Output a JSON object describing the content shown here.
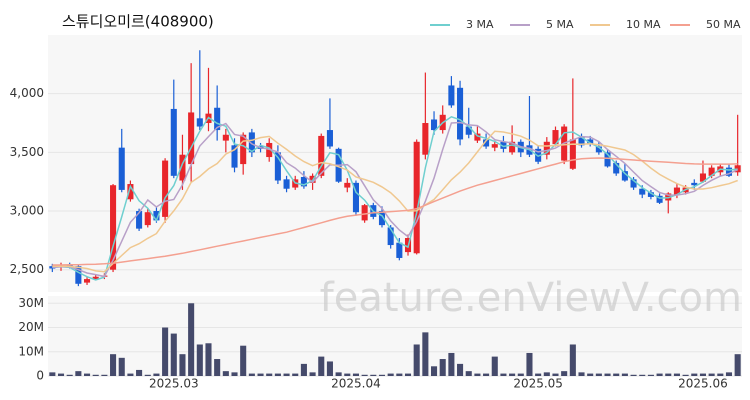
{
  "chart_data": [
    {
      "type": "candlestick",
      "title": "스튜디오미르(408900)",
      "annotation": "feature.enViewV.com",
      "up_color": "#e8262b",
      "down_color": "#1a5fd6",
      "open": [
        2530,
        2520,
        2540,
        2530,
        2390,
        2420,
        2440,
        2500,
        3540,
        3100,
        3000,
        2880,
        3000,
        2950,
        3870,
        3260,
        3400,
        3790,
        3750,
        3880,
        3600,
        3560,
        3400,
        3670,
        3550,
        3460,
        3500,
        3270,
        3200,
        3290,
        3240,
        3300,
        3690,
        3530,
        3200,
        3240,
        2920,
        3050,
        3000,
        2860,
        2730,
        2650,
        2640,
        3480,
        3780,
        3690,
        4070,
        4050,
        3720,
        3600,
        3610,
        3540,
        3590,
        3500,
        3590,
        3560,
        3530,
        3480,
        3570,
        3430,
        3360,
        3630,
        3610,
        3550,
        3500,
        3410,
        3340,
        3270,
        3190,
        3160,
        3130,
        3090,
        3140,
        3160,
        3240,
        3250,
        3300,
        3330,
        3370,
        3330
      ],
      "high": [
        2550,
        2560,
        2560,
        2540,
        2440,
        2460,
        2470,
        3230,
        3700,
        3260,
        3020,
        3020,
        3030,
        3450,
        4120,
        3650,
        4260,
        4370,
        4220,
        4070,
        3700,
        3620,
        3670,
        3700,
        3580,
        3620,
        3560,
        3300,
        3300,
        3340,
        3320,
        3660,
        3960,
        3540,
        3280,
        3260,
        3060,
        3070,
        3040,
        2880,
        2770,
        2800,
        3610,
        4180,
        3850,
        3900,
        4150,
        4110,
        3880,
        3720,
        3660,
        3600,
        3640,
        3730,
        3610,
        3980,
        3560,
        3630,
        3720,
        3740,
        4130,
        3660,
        3640,
        3590,
        3520,
        3430,
        3400,
        3290,
        3220,
        3180,
        3150,
        3160,
        3230,
        3220,
        3270,
        3430,
        3390,
        3400,
        3400,
        3820
      ],
      "low": [
        2480,
        2490,
        2510,
        2360,
        2370,
        2410,
        2420,
        2480,
        3160,
        3080,
        2830,
        2860,
        2900,
        2900,
        3280,
        3180,
        3250,
        3690,
        3680,
        3600,
        3500,
        3330,
        3310,
        3460,
        3500,
        3420,
        3230,
        3160,
        3180,
        3190,
        3180,
        3280,
        3530,
        3240,
        3160,
        2960,
        2900,
        2930,
        2860,
        2680,
        2580,
        2620,
        2630,
        3440,
        3650,
        3660,
        3880,
        3560,
        3620,
        3580,
        3530,
        3510,
        3500,
        3480,
        3460,
        3460,
        3400,
        3440,
        3550,
        3400,
        3350,
        3540,
        3550,
        3480,
        3370,
        3300,
        3250,
        3180,
        3110,
        3100,
        3060,
        2980,
        3110,
        3140,
        3180,
        3240,
        3280,
        3300,
        3290,
        3300
      ],
      "close": [
        2510,
        2530,
        2520,
        2380,
        2420,
        2440,
        2450,
        3220,
        3180,
        3230,
        2850,
        2990,
        2920,
        3430,
        3300,
        3480,
        3840,
        3720,
        3830,
        3690,
        3650,
        3370,
        3650,
        3500,
        3530,
        3580,
        3260,
        3190,
        3270,
        3210,
        3300,
        3640,
        3550,
        3250,
        3240,
        2990,
        3050,
        2950,
        2880,
        2710,
        2600,
        2770,
        3590,
        3750,
        3690,
        3820,
        3900,
        3610,
        3650,
        3660,
        3550,
        3570,
        3530,
        3590,
        3500,
        3480,
        3420,
        3590,
        3690,
        3720,
        3610,
        3560,
        3570,
        3500,
        3380,
        3320,
        3260,
        3200,
        3140,
        3120,
        3070,
        3150,
        3200,
        3200,
        3220,
        3320,
        3370,
        3380,
        3300,
        3390
      ],
      "series": [
        {
          "name": "3 MA",
          "color": "#6fcfcf",
          "values": [
            2520,
            2525,
            2520,
            2477,
            2440,
            2413,
            2437,
            2703,
            2950,
            3210,
            3087,
            3023,
            2920,
            3113,
            3217,
            3403,
            3540,
            3680,
            3797,
            3747,
            3723,
            3570,
            3557,
            3507,
            3560,
            3537,
            3457,
            3343,
            3240,
            3223,
            3260,
            3383,
            3497,
            3480,
            3347,
            3160,
            3093,
            2997,
            2960,
            2847,
            2730,
            2693,
            2987,
            3370,
            3677,
            3753,
            3803,
            3777,
            3720,
            3640,
            3620,
            3593,
            3550,
            3563,
            3540,
            3523,
            3467,
            3497,
            3567,
            3667,
            3673,
            3630,
            3580,
            3543,
            3483,
            3400,
            3320,
            3260,
            3200,
            3153,
            3110,
            3113,
            3140,
            3183,
            3207,
            3247,
            3303,
            3357,
            3350,
            3357
          ]
        },
        {
          "name": "5 MA",
          "color": "#b8a0c8",
          "values": [
            2520,
            2525,
            2525,
            2500,
            2472,
            2458,
            2442,
            2582,
            2742,
            2904,
            2986,
            3094,
            3034,
            3084,
            3098,
            3224,
            3394,
            3554,
            3634,
            3712,
            3746,
            3652,
            3638,
            3572,
            3540,
            3526,
            3504,
            3412,
            3366,
            3302,
            3246,
            3322,
            3394,
            3390,
            3396,
            3334,
            3216,
            3096,
            3022,
            2916,
            2838,
            2782,
            2910,
            3084,
            3280,
            3524,
            3750,
            3754,
            3734,
            3728,
            3674,
            3608,
            3592,
            3580,
            3548,
            3534,
            3504,
            3516,
            3536,
            3580,
            3606,
            3634,
            3630,
            3592,
            3524,
            3466,
            3406,
            3332,
            3260,
            3208,
            3158,
            3136,
            3136,
            3148,
            3168,
            3218,
            3262,
            3298,
            3318,
            3352
          ]
        },
        {
          "name": "10 MA",
          "color": "#f0c890",
          "values": [
            2530,
            2530,
            2528,
            2520,
            2510,
            2490,
            2483,
            2553,
            2621,
            2688,
            2722,
            2768,
            2808,
            2913,
            3001,
            3105,
            3244,
            3294,
            3359,
            3405,
            3485,
            3523,
            3596,
            3603,
            3626,
            3636,
            3578,
            3525,
            3469,
            3421,
            3386,
            3413,
            3403,
            3378,
            3349,
            3290,
            3269,
            3245,
            3206,
            3156,
            3086,
            2999,
            3003,
            3053,
            3098,
            3181,
            3266,
            3332,
            3409,
            3504,
            3599,
            3679,
            3673,
            3657,
            3638,
            3604,
            3556,
            3554,
            3558,
            3564,
            3570,
            3569,
            3573,
            3564,
            3552,
            3536,
            3520,
            3481,
            3426,
            3366,
            3312,
            3271,
            3234,
            3204,
            3188,
            3188,
            3199,
            3217,
            3233,
            3260
          ]
        },
        {
          "name": "50 MA",
          "color": "#f4a090",
          "values": [
            2540,
            2540,
            2542,
            2543,
            2545,
            2547,
            2550,
            2555,
            2565,
            2575,
            2585,
            2595,
            2605,
            2615,
            2628,
            2640,
            2655,
            2670,
            2685,
            2700,
            2715,
            2730,
            2745,
            2760,
            2775,
            2790,
            2805,
            2820,
            2840,
            2860,
            2880,
            2900,
            2920,
            2940,
            2955,
            2965,
            2975,
            2985,
            2990,
            2995,
            3000,
            3005,
            3020,
            3050,
            3080,
            3110,
            3140,
            3170,
            3195,
            3220,
            3240,
            3260,
            3280,
            3300,
            3320,
            3340,
            3360,
            3380,
            3400,
            3420,
            3435,
            3445,
            3450,
            3452,
            3450,
            3445,
            3440,
            3435,
            3430,
            3425,
            3420,
            3415,
            3410,
            3405,
            3402,
            3400,
            3400,
            3400,
            3400,
            3402
          ]
        }
      ],
      "ylim": [
        2310,
        4500
      ],
      "yticks": [
        {
          "value": 2500,
          "label": "2,500"
        },
        {
          "value": 3000,
          "label": "3,000"
        },
        {
          "value": 3500,
          "label": "3,500"
        },
        {
          "value": 4000,
          "label": "4,000"
        }
      ],
      "grid": true,
      "legend": "top-right"
    },
    {
      "type": "bar",
      "color": "#454a6b",
      "categories": [
        null,
        null,
        null,
        null,
        null,
        null,
        null,
        null,
        null,
        null,
        null,
        null,
        null,
        null,
        "2025.03",
        null,
        null,
        null,
        null,
        null,
        null,
        null,
        null,
        null,
        null,
        null,
        null,
        null,
        null,
        null,
        null,
        null,
        null,
        null,
        null,
        "2025.04",
        null,
        null,
        null,
        null,
        null,
        null,
        null,
        null,
        null,
        null,
        null,
        null,
        null,
        null,
        null,
        null,
        null,
        null,
        null,
        null,
        "2025.05",
        null,
        null,
        null,
        null,
        null,
        null,
        null,
        null,
        null,
        null,
        null,
        null,
        null,
        null,
        null,
        null,
        null,
        null,
        "2025.06",
        null,
        null,
        null,
        null
      ],
      "values": [
        1500000,
        1000000,
        500000,
        2000000,
        1000000,
        500000,
        500000,
        9000000,
        7500000,
        1000000,
        2500000,
        500000,
        1000000,
        20000000,
        17500000,
        9000000,
        30000000,
        13000000,
        13500000,
        7000000,
        2000000,
        1500000,
        12500000,
        1000000,
        1000000,
        1000000,
        1000000,
        1000000,
        1000000,
        5000000,
        1500000,
        8000000,
        6000000,
        1500000,
        1000000,
        1000000,
        500000,
        500000,
        500000,
        1000000,
        1000000,
        1000000,
        13000000,
        18000000,
        4000000,
        7000000,
        9500000,
        5000000,
        2000000,
        1000000,
        1000000,
        8000000,
        1000000,
        1000000,
        1000000,
        9500000,
        1000000,
        1500000,
        1000000,
        2000000,
        13000000,
        1500000,
        1000000,
        1000000,
        1000000,
        1000000,
        1000000,
        500000,
        500000,
        500000,
        1000000,
        1000000,
        1000000,
        500000,
        1000000,
        1000000,
        1000000,
        1000000,
        1500000,
        9000000
      ],
      "ylim": [
        0,
        33000000
      ],
      "yticks": [
        0,
        {
          "value": 10000000,
          "label": "10M"
        },
        {
          "value": 20000000,
          "label": "20M"
        },
        {
          "value": 30000000,
          "label": "30M"
        }
      ],
      "grid": true
    }
  ]
}
